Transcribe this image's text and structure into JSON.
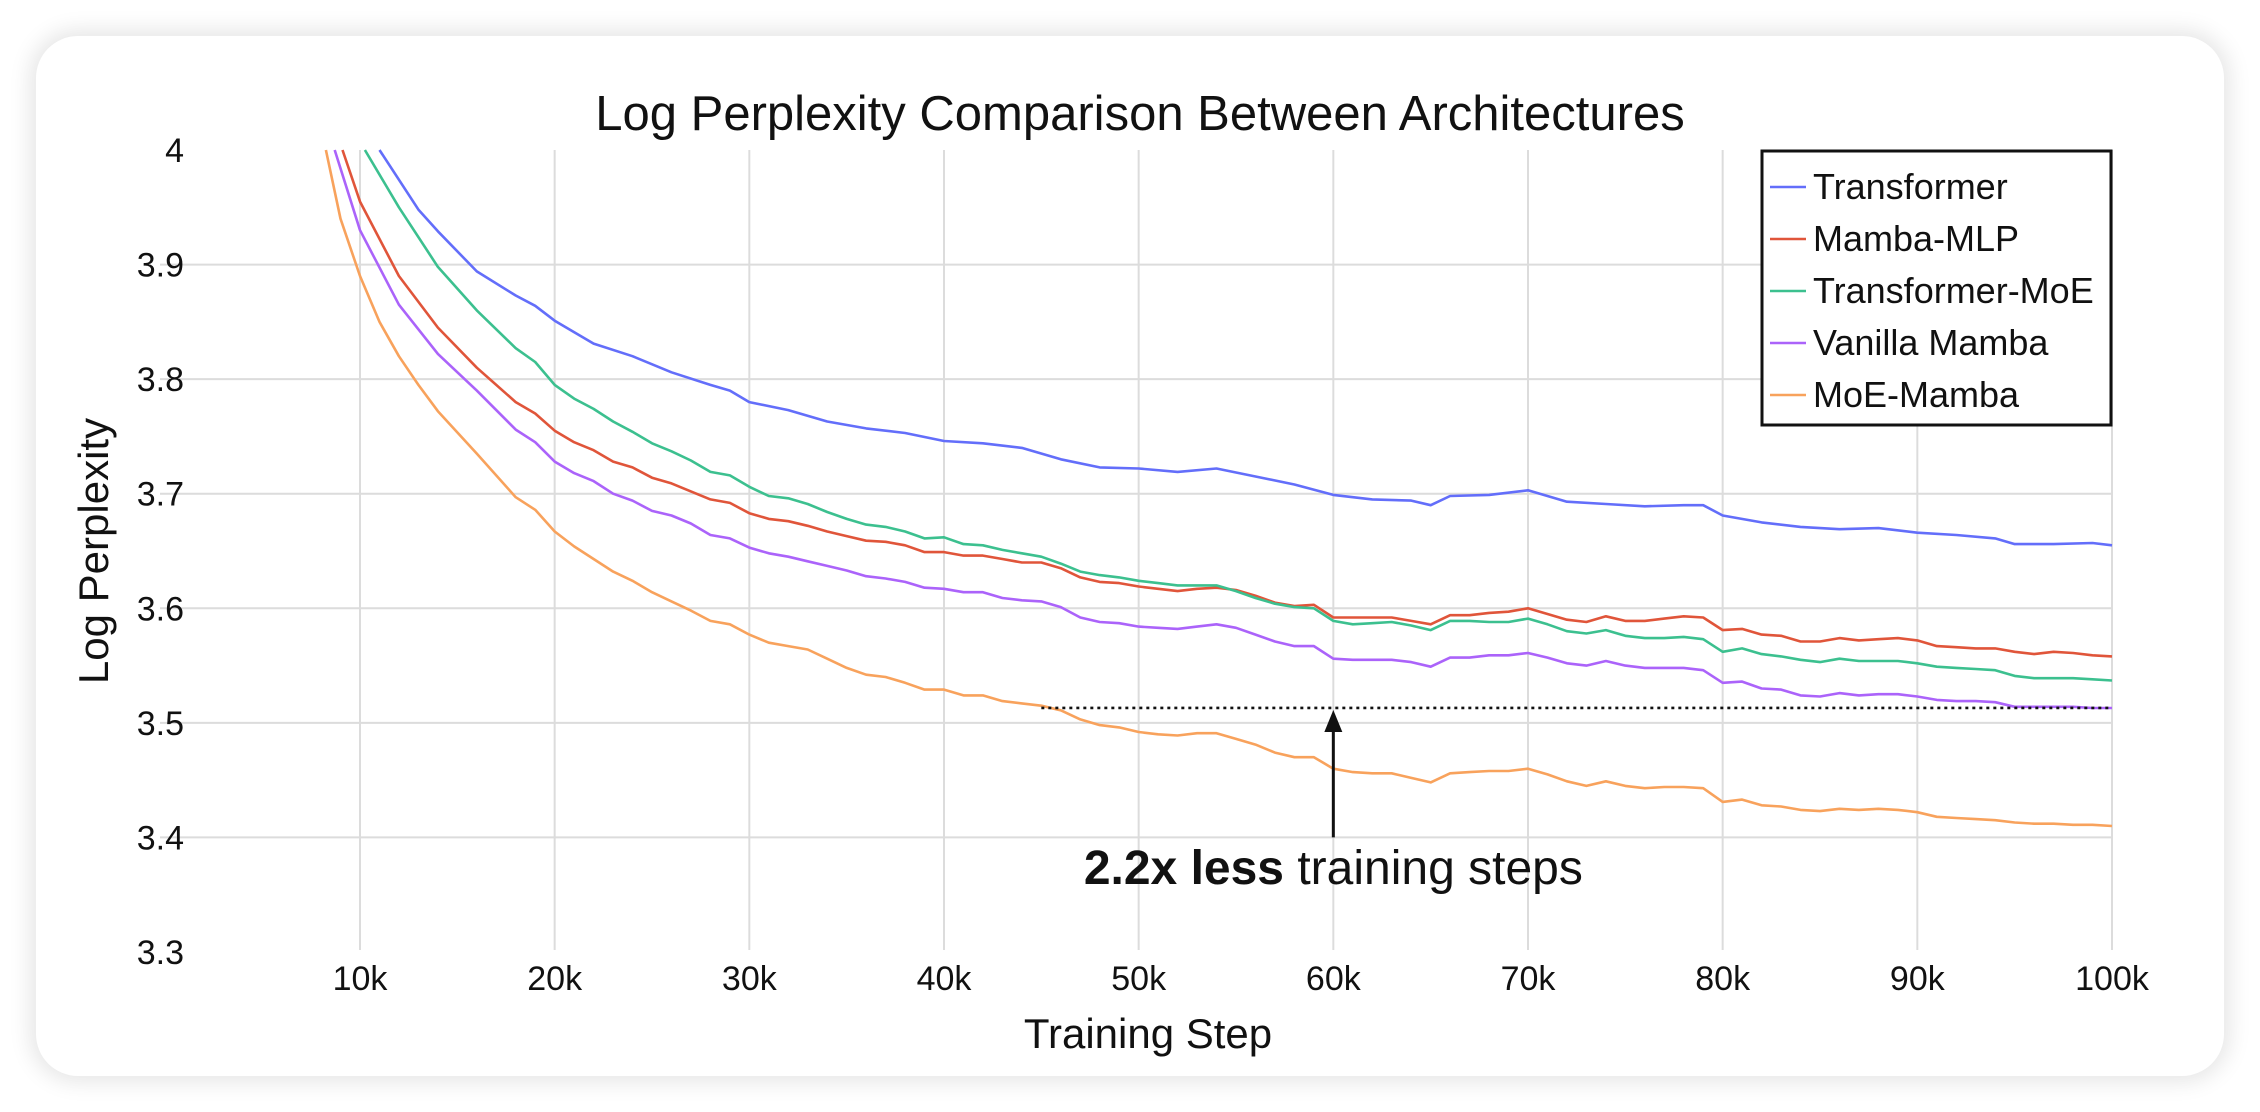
{
  "chart_data": {
    "type": "line",
    "title": "Log Perplexity Comparison Between Architectures",
    "xlabel": "Training Step",
    "ylabel": "Log Perplexity",
    "xlim": [
      1000,
      100000
    ],
    "ylim": [
      3.3,
      4.0
    ],
    "xticks": [
      10000,
      20000,
      30000,
      40000,
      50000,
      60000,
      70000,
      80000,
      90000,
      100000
    ],
    "xtick_labels": [
      "10k",
      "20k",
      "30k",
      "40k",
      "50k",
      "60k",
      "70k",
      "80k",
      "90k",
      "100k"
    ],
    "yticks": [
      3.3,
      3.4,
      3.5,
      3.6,
      3.7,
      3.8,
      3.9,
      4.0
    ],
    "ytick_labels": [
      "3.3",
      "3.4",
      "3.5",
      "3.6",
      "3.7",
      "3.8",
      "3.9",
      "4"
    ],
    "grid": true,
    "legend_position": "top-right",
    "series": [
      {
        "name": "Transformer",
        "color": "#636efa",
        "x": [
          11000,
          13000,
          14000,
          16000,
          18000,
          19000,
          20000,
          22000,
          24000,
          26000,
          28000,
          29000,
          30000,
          32000,
          34000,
          36000,
          38000,
          40000,
          42000,
          44000,
          46000,
          48000,
          50000,
          52000,
          54000,
          56000,
          58000,
          60000,
          62000,
          64000,
          65000,
          66000,
          68000,
          70000,
          72000,
          74000,
          76000,
          78000,
          79000,
          80000,
          82000,
          84000,
          86000,
          88000,
          90000,
          92000,
          94000,
          95000,
          97000,
          99000,
          100000
        ],
        "y": [
          4.0,
          3.948,
          3.929,
          3.894,
          3.873,
          3.864,
          3.851,
          3.831,
          3.82,
          3.806,
          3.795,
          3.79,
          3.78,
          3.773,
          3.763,
          3.757,
          3.753,
          3.746,
          3.744,
          3.74,
          3.73,
          3.723,
          3.722,
          3.719,
          3.722,
          3.715,
          3.708,
          3.699,
          3.695,
          3.694,
          3.69,
          3.698,
          3.699,
          3.703,
          3.693,
          3.691,
          3.689,
          3.69,
          3.69,
          3.681,
          3.675,
          3.671,
          3.669,
          3.67,
          3.666,
          3.664,
          3.661,
          3.656,
          3.656,
          3.657,
          3.655
        ]
      },
      {
        "name": "Mamba-MLP",
        "color": "#e0553a",
        "x": [
          9100,
          10000,
          12000,
          14000,
          16000,
          18000,
          19000,
          20000,
          21000,
          22000,
          23000,
          24000,
          25000,
          26000,
          27000,
          28000,
          29000,
          30000,
          31000,
          32000,
          33000,
          34000,
          35000,
          36000,
          37000,
          38000,
          39000,
          40000,
          41000,
          42000,
          43000,
          44000,
          45000,
          46000,
          47000,
          48000,
          49000,
          50000,
          51000,
          52000,
          53000,
          54000,
          55000,
          56000,
          57000,
          58000,
          59000,
          60000,
          61000,
          62000,
          63000,
          64000,
          65000,
          66000,
          67000,
          68000,
          69000,
          70000,
          71000,
          72000,
          73000,
          74000,
          75000,
          76000,
          77000,
          78000,
          79000,
          80000,
          81000,
          82000,
          83000,
          84000,
          85000,
          86000,
          87000,
          88000,
          89000,
          90000,
          91000,
          92000,
          93000,
          94000,
          95000,
          96000,
          97000,
          98000,
          99000,
          100000
        ],
        "y": [
          4.0,
          3.955,
          3.89,
          3.845,
          3.81,
          3.78,
          3.77,
          3.755,
          3.745,
          3.738,
          3.728,
          3.723,
          3.714,
          3.709,
          3.702,
          3.695,
          3.692,
          3.683,
          3.678,
          3.676,
          3.672,
          3.667,
          3.663,
          3.659,
          3.658,
          3.655,
          3.649,
          3.649,
          3.646,
          3.646,
          3.643,
          3.64,
          3.64,
          3.635,
          3.627,
          3.623,
          3.622,
          3.619,
          3.617,
          3.615,
          3.617,
          3.618,
          3.616,
          3.611,
          3.605,
          3.602,
          3.603,
          3.592,
          3.592,
          3.592,
          3.592,
          3.589,
          3.586,
          3.594,
          3.594,
          3.596,
          3.597,
          3.6,
          3.595,
          3.59,
          3.588,
          3.593,
          3.589,
          3.589,
          3.591,
          3.593,
          3.592,
          3.581,
          3.582,
          3.577,
          3.576,
          3.571,
          3.571,
          3.574,
          3.572,
          3.573,
          3.574,
          3.572,
          3.567,
          3.566,
          3.565,
          3.565,
          3.562,
          3.56,
          3.562,
          3.561,
          3.559,
          3.558
        ]
      },
      {
        "name": "Transformer-MoE",
        "color": "#3cc08f",
        "x": [
          10250,
          12000,
          14000,
          16000,
          18000,
          19000,
          20000,
          21000,
          22000,
          23000,
          24000,
          25000,
          26000,
          27000,
          28000,
          29000,
          30000,
          31000,
          32000,
          33000,
          34000,
          35000,
          36000,
          37000,
          38000,
          39000,
          40000,
          41000,
          42000,
          43000,
          44000,
          45000,
          46000,
          47000,
          48000,
          49000,
          50000,
          51000,
          52000,
          53000,
          54000,
          55000,
          56000,
          57000,
          58000,
          59000,
          60000,
          61000,
          62000,
          63000,
          64000,
          65000,
          66000,
          67000,
          68000,
          69000,
          70000,
          71000,
          72000,
          73000,
          74000,
          75000,
          76000,
          77000,
          78000,
          79000,
          80000,
          81000,
          82000,
          83000,
          84000,
          85000,
          86000,
          87000,
          88000,
          89000,
          90000,
          91000,
          92000,
          93000,
          94000,
          95000,
          96000,
          97000,
          98000,
          99000,
          100000
        ],
        "y": [
          4.0,
          3.95,
          3.898,
          3.86,
          3.827,
          3.815,
          3.795,
          3.783,
          3.774,
          3.763,
          3.754,
          3.744,
          3.737,
          3.729,
          3.719,
          3.716,
          3.706,
          3.698,
          3.696,
          3.691,
          3.684,
          3.678,
          3.673,
          3.671,
          3.667,
          3.661,
          3.662,
          3.656,
          3.655,
          3.651,
          3.648,
          3.645,
          3.639,
          3.632,
          3.629,
          3.627,
          3.624,
          3.622,
          3.62,
          3.62,
          3.62,
          3.615,
          3.609,
          3.604,
          3.601,
          3.6,
          3.589,
          3.586,
          3.587,
          3.588,
          3.585,
          3.581,
          3.589,
          3.589,
          3.588,
          3.588,
          3.591,
          3.586,
          3.58,
          3.578,
          3.581,
          3.576,
          3.574,
          3.574,
          3.575,
          3.573,
          3.562,
          3.565,
          3.56,
          3.558,
          3.555,
          3.553,
          3.556,
          3.554,
          3.554,
          3.554,
          3.552,
          3.549,
          3.548,
          3.547,
          3.546,
          3.541,
          3.539,
          3.539,
          3.539,
          3.538,
          3.537
        ]
      },
      {
        "name": "Vanilla Mamba",
        "color": "#ab63fa",
        "x": [
          8700,
          10000,
          12000,
          14000,
          16000,
          18000,
          19000,
          20000,
          21000,
          22000,
          23000,
          24000,
          25000,
          26000,
          27000,
          28000,
          29000,
          30000,
          31000,
          32000,
          33000,
          34000,
          35000,
          36000,
          37000,
          38000,
          39000,
          40000,
          41000,
          42000,
          43000,
          44000,
          45000,
          46000,
          47000,
          48000,
          49000,
          50000,
          51000,
          52000,
          53000,
          54000,
          55000,
          56000,
          57000,
          58000,
          59000,
          60000,
          61000,
          62000,
          63000,
          64000,
          65000,
          66000,
          67000,
          68000,
          69000,
          70000,
          71000,
          72000,
          73000,
          74000,
          75000,
          76000,
          77000,
          78000,
          79000,
          80000,
          81000,
          82000,
          83000,
          84000,
          85000,
          86000,
          87000,
          88000,
          89000,
          90000,
          91000,
          92000,
          93000,
          94000,
          95000,
          96000,
          97000,
          98000,
          99000,
          100000
        ],
        "y": [
          4.0,
          3.93,
          3.865,
          3.822,
          3.79,
          3.756,
          3.745,
          3.728,
          3.718,
          3.711,
          3.7,
          3.694,
          3.685,
          3.681,
          3.674,
          3.664,
          3.661,
          3.653,
          3.648,
          3.645,
          3.641,
          3.637,
          3.633,
          3.628,
          3.626,
          3.623,
          3.618,
          3.617,
          3.614,
          3.614,
          3.609,
          3.607,
          3.606,
          3.601,
          3.592,
          3.588,
          3.587,
          3.584,
          3.583,
          3.582,
          3.584,
          3.586,
          3.583,
          3.577,
          3.571,
          3.567,
          3.567,
          3.556,
          3.555,
          3.555,
          3.555,
          3.553,
          3.549,
          3.557,
          3.557,
          3.559,
          3.559,
          3.561,
          3.557,
          3.552,
          3.55,
          3.554,
          3.55,
          3.548,
          3.548,
          3.548,
          3.546,
          3.535,
          3.536,
          3.53,
          3.529,
          3.524,
          3.523,
          3.526,
          3.524,
          3.525,
          3.525,
          3.523,
          3.52,
          3.519,
          3.519,
          3.518,
          3.514,
          3.514,
          3.514,
          3.514,
          3.513,
          3.513
        ]
      },
      {
        "name": "MoE-Mamba",
        "color": "#f8a25c",
        "x": [
          8250,
          9000,
          10000,
          11000,
          12000,
          13000,
          14000,
          16000,
          18000,
          19000,
          20000,
          21000,
          22000,
          23000,
          24000,
          25000,
          26000,
          27000,
          28000,
          29000,
          30000,
          31000,
          32000,
          33000,
          34000,
          35000,
          36000,
          37000,
          38000,
          39000,
          40000,
          41000,
          42000,
          43000,
          44000,
          45000,
          46000,
          47000,
          48000,
          49000,
          50000,
          51000,
          52000,
          53000,
          54000,
          55000,
          56000,
          57000,
          58000,
          59000,
          60000,
          61000,
          62000,
          63000,
          64000,
          65000,
          66000,
          67000,
          68000,
          69000,
          70000,
          71000,
          72000,
          73000,
          74000,
          75000,
          76000,
          77000,
          78000,
          79000,
          80000,
          81000,
          82000,
          83000,
          84000,
          85000,
          86000,
          87000,
          88000,
          89000,
          90000,
          91000,
          92000,
          93000,
          94000,
          95000,
          96000,
          97000,
          98000,
          99000,
          100000
        ],
        "y": [
          4.0,
          3.94,
          3.89,
          3.85,
          3.82,
          3.795,
          3.772,
          3.735,
          3.697,
          3.686,
          3.667,
          3.654,
          3.643,
          3.632,
          3.624,
          3.614,
          3.606,
          3.598,
          3.589,
          3.586,
          3.577,
          3.57,
          3.567,
          3.564,
          3.556,
          3.548,
          3.542,
          3.54,
          3.535,
          3.529,
          3.529,
          3.524,
          3.524,
          3.519,
          3.517,
          3.515,
          3.511,
          3.503,
          3.498,
          3.496,
          3.492,
          3.49,
          3.489,
          3.491,
          3.491,
          3.486,
          3.481,
          3.474,
          3.47,
          3.47,
          3.46,
          3.457,
          3.456,
          3.456,
          3.452,
          3.448,
          3.456,
          3.457,
          3.458,
          3.458,
          3.46,
          3.455,
          3.449,
          3.445,
          3.449,
          3.445,
          3.443,
          3.444,
          3.444,
          3.443,
          3.431,
          3.433,
          3.428,
          3.427,
          3.424,
          3.423,
          3.425,
          3.424,
          3.425,
          3.424,
          3.422,
          3.418,
          3.417,
          3.416,
          3.415,
          3.413,
          3.412,
          3.412,
          3.411,
          3.411,
          3.41
        ]
      }
    ],
    "annotation": {
      "bold_text": "2.2x less",
      "text": " training steps",
      "reference_line": {
        "y": 3.513,
        "x_start": 45000,
        "x_end": 100000,
        "style": "dotted"
      },
      "arrow": {
        "x": 60000,
        "y_from": 3.4,
        "y_to": 3.513
      }
    }
  }
}
